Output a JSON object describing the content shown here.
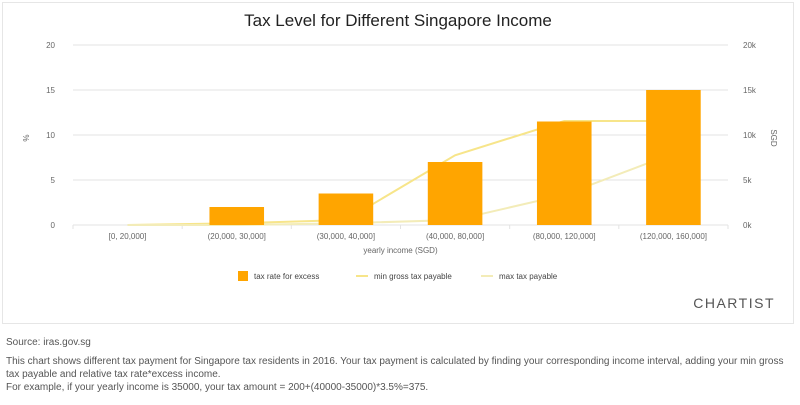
{
  "chart_data": {
    "type": "bar",
    "title": "Tax Level for Different Singapore Income",
    "xlabel": "yearly income (SGD)",
    "ylabel_left": "%",
    "ylabel_right": "SGD",
    "categories": [
      "[0, 20,000]",
      "(20,000, 30,000]",
      "(30,000, 40,000]",
      "(40,000, 80,000]",
      "(80,000, 120,000]",
      "(120,000, 160,000]"
    ],
    "ylim_left": [
      0,
      20
    ],
    "yticks_left": [
      "0",
      "5",
      "10",
      "15",
      "20"
    ],
    "ylim_right": [
      0,
      20000
    ],
    "yticks_right": [
      "0k",
      "5k",
      "10k",
      "15k",
      "20k"
    ],
    "series": [
      {
        "name": "tax rate for excess",
        "axis": "left",
        "kind": "bar",
        "color": "#ffa500",
        "values": [
          0,
          2,
          3.5,
          7,
          11.5,
          15
        ]
      },
      {
        "name": "min gross tax payable",
        "axis": "right",
        "kind": "line",
        "color": "#f7e58a",
        "values": [
          0,
          200,
          550,
          7750,
          11550,
          11550
        ]
      },
      {
        "name": "max tax payable",
        "axis": "right",
        "kind": "line",
        "color": "#f3ecb8",
        "values": [
          0,
          0,
          200,
          550,
          3350,
          7950
        ]
      }
    ],
    "legend_position": "bottom",
    "grid": true
  },
  "brand": "CHARTIST",
  "footer": {
    "source": "Source: iras.gov.sg",
    "description": "This chart shows different tax payment for Singapore tax residents in 2016. Your tax payment is calculated by finding your corresponding income interval, adding your min gross tax payable and relative tax rate*excess income.",
    "example": "For example, if your yearly income is 35000, your tax amount = 200+(40000-35000)*3.5%=375."
  }
}
